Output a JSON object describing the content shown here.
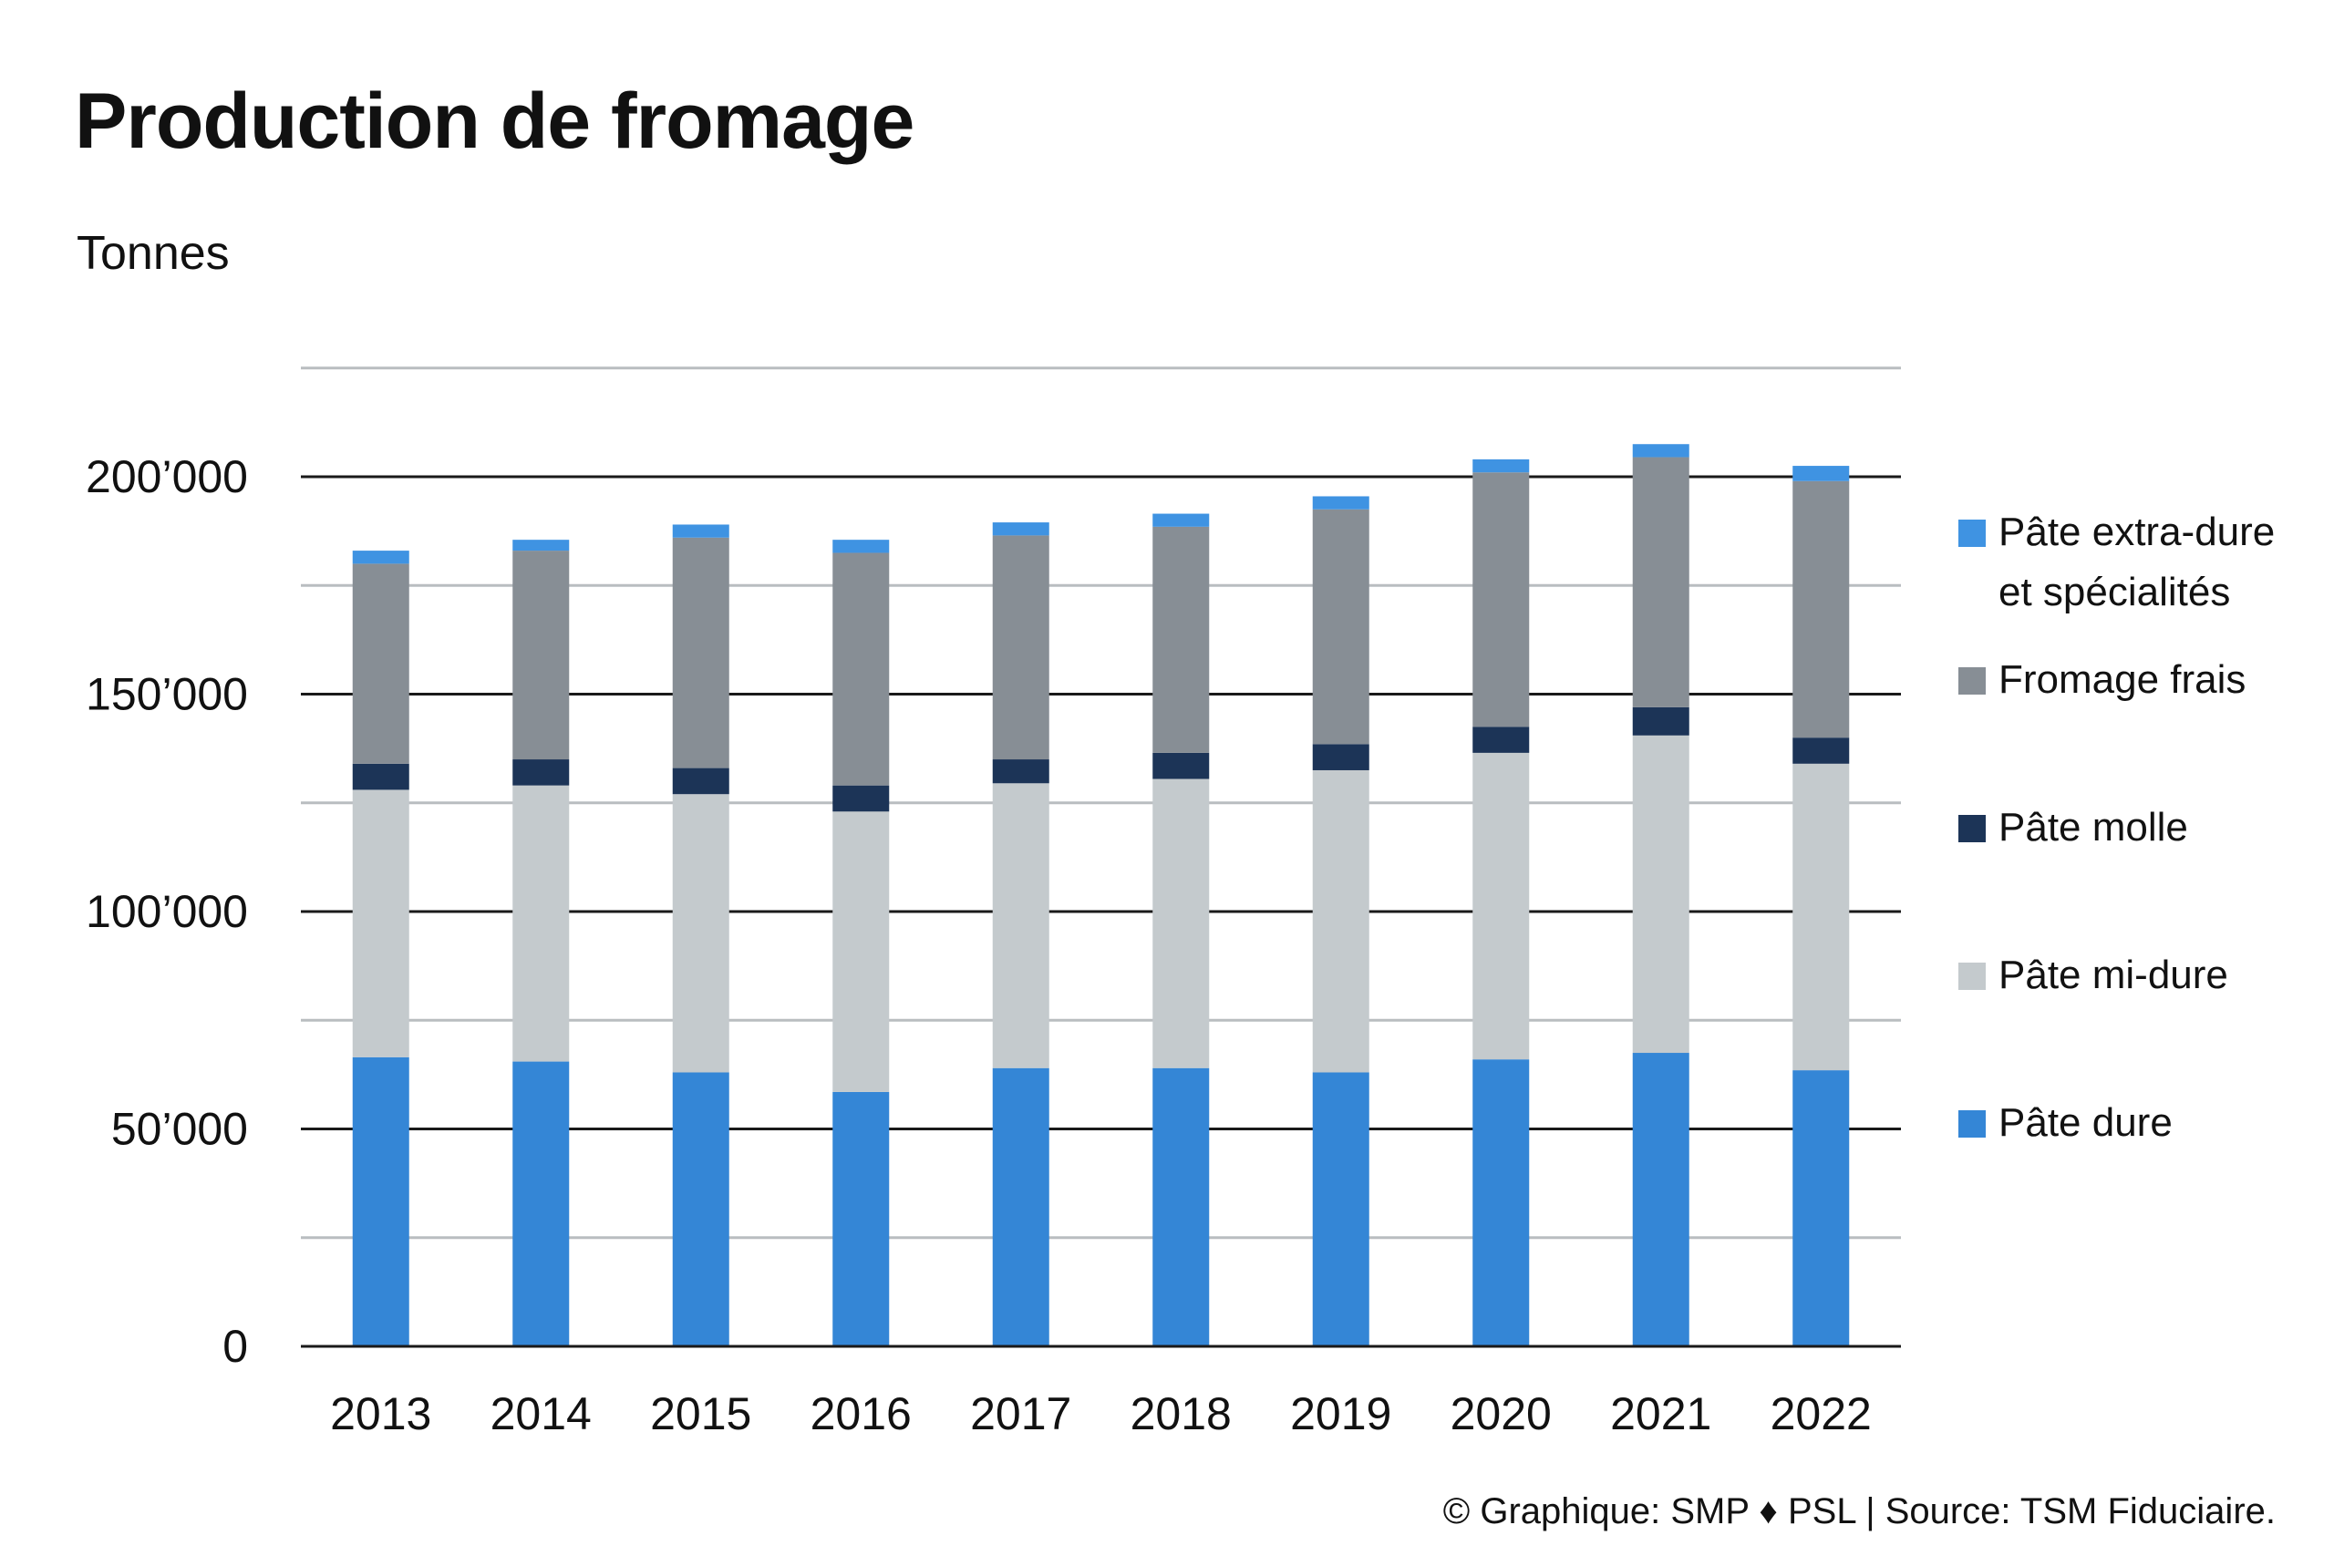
{
  "header": {
    "title": "Production de fromage",
    "unit": "Tonnes"
  },
  "footer": {
    "credit": "© Graphique: SMP ♦ PSL | Source: TSM Fiduciaire."
  },
  "chart_data": {
    "type": "bar",
    "stacked": true,
    "title": "Production de fromage",
    "ylabel": "Tonnes",
    "xlabel": "",
    "ylim": [
      0,
      225000
    ],
    "yticks": [
      0,
      50000,
      100000,
      150000,
      200000
    ],
    "ytick_labels": [
      "0",
      "50’000",
      "100’000",
      "150’000",
      "200’000"
    ],
    "minor_gridlines": [
      25000,
      75000,
      125000,
      175000,
      225000
    ],
    "grid": true,
    "legend_position": "right",
    "categories": [
      "2013",
      "2014",
      "2015",
      "2016",
      "2017",
      "2018",
      "2019",
      "2020",
      "2021",
      "2022"
    ],
    "series": [
      {
        "name": "Pâte dure",
        "color": "#3486d6",
        "values": [
          66500,
          65500,
          63000,
          58500,
          64000,
          64000,
          63000,
          66000,
          67500,
          63500
        ]
      },
      {
        "name": "Pâte mi-dure",
        "color": "#c4cacd",
        "values": [
          61500,
          63500,
          64000,
          64500,
          65500,
          66500,
          69500,
          70500,
          73000,
          70500
        ]
      },
      {
        "name": "Pâte molle",
        "color": "#1c3457",
        "values": [
          6000,
          6000,
          6000,
          6000,
          5500,
          6000,
          6000,
          6000,
          6500,
          6000
        ]
      },
      {
        "name": "Fromage frais",
        "color": "#878e95",
        "values": [
          46000,
          48000,
          53000,
          53500,
          51500,
          52000,
          54000,
          58500,
          57500,
          59000
        ]
      },
      {
        "name": "Pâte extra-dure et spécialités",
        "color": "#3f93e2",
        "values": [
          3000,
          2500,
          3000,
          3000,
          3000,
          3000,
          3000,
          3000,
          3000,
          3500
        ]
      }
    ],
    "legend_order": [
      "Pâte extra-dure et spécialités",
      "Fromage frais",
      "Pâte molle",
      "Pâte mi-dure",
      "Pâte dure"
    ],
    "legend_lines": [
      [
        "Pâte extra-dure",
        "et spécialités"
      ],
      [
        "Fromage frais"
      ],
      [
        "Pâte molle"
      ],
      [
        "Pâte mi-dure"
      ],
      [
        "Pâte dure"
      ]
    ]
  }
}
